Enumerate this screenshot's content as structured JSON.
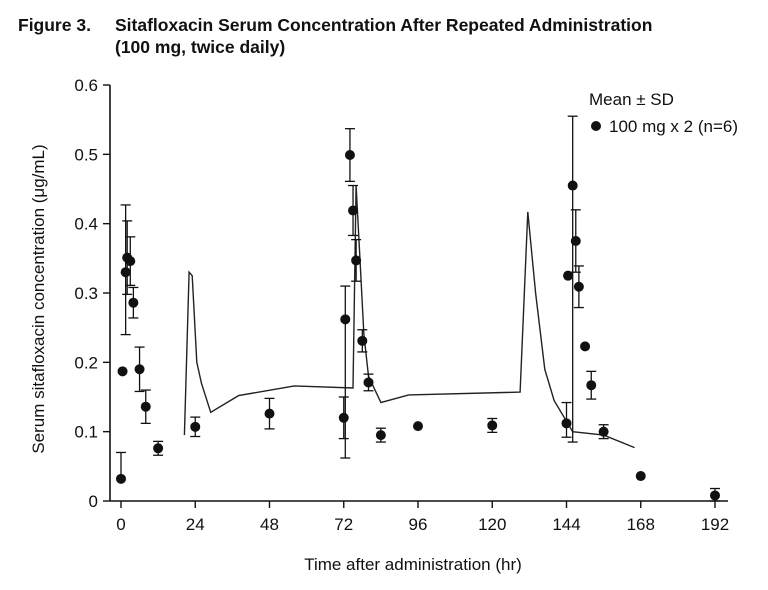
{
  "figure": {
    "label": "Figure 3.",
    "title": "Sitafloxacin Serum Concentration After Repeated  Administration",
    "subtitle": "(100 mg, twice daily)"
  },
  "chart_data": {
    "type": "scatter",
    "xlabel": "Time after administration (hr)",
    "ylabel": "Serum sitafloxacin concentration (μg/mL)",
    "xlim": [
      0,
      192
    ],
    "ylim": [
      0,
      0.6
    ],
    "xticks": [
      0,
      24,
      48,
      72,
      96,
      120,
      144,
      168,
      192
    ],
    "yticks": [
      0,
      0.1,
      0.2,
      0.3,
      0.4,
      0.5,
      0.6
    ],
    "ytick_labels": [
      "0",
      "0.1",
      "0.2",
      "0.3",
      "0.4",
      "0.5",
      "0.6"
    ],
    "legend": {
      "title": "Mean ± SD",
      "entry": "100 mg x 2 (n=6)",
      "position": "top-right"
    },
    "grid": false,
    "series": [
      {
        "name": "100 mg x 2 (n=6)",
        "marker": "filled-circle",
        "points": [
          {
            "x": 0,
            "y": 0.032,
            "sd_up": 0.038,
            "sd_low": 0
          },
          {
            "x": 0.5,
            "y": 0.187,
            "sd_up": 0,
            "sd_low": 0
          },
          {
            "x": 1.5,
            "y": 0.33,
            "sd_up": 0.097,
            "sd_low": 0.09
          },
          {
            "x": 2,
            "y": 0.351,
            "sd_up": 0.053,
            "sd_low": 0.053
          },
          {
            "x": 3,
            "y": 0.346,
            "sd_up": 0.035,
            "sd_low": 0.035
          },
          {
            "x": 4,
            "y": 0.286,
            "sd_up": 0.022,
            "sd_low": 0.022
          },
          {
            "x": 6,
            "y": 0.19,
            "sd_up": 0.032,
            "sd_low": 0.032
          },
          {
            "x": 8,
            "y": 0.136,
            "sd_up": 0.024,
            "sd_low": 0.024
          },
          {
            "x": 12,
            "y": 0.076,
            "sd_up": 0.01,
            "sd_low": 0.01
          },
          {
            "x": 24,
            "y": 0.107,
            "sd_up": 0.014,
            "sd_low": 0.014
          },
          {
            "x": 48,
            "y": 0.126,
            "sd_up": 0.022,
            "sd_low": 0.022
          },
          {
            "x": 72,
            "y": 0.12,
            "sd_up": 0.03,
            "sd_low": 0.03
          },
          {
            "x": 72.5,
            "y": 0.262,
            "sd_up": 0.048,
            "sd_low": 0.2
          },
          {
            "x": 74,
            "y": 0.499,
            "sd_up": 0.038,
            "sd_low": 0.038
          },
          {
            "x": 75,
            "y": 0.419,
            "sd_up": 0.036,
            "sd_low": 0.036
          },
          {
            "x": 76,
            "y": 0.347,
            "sd_up": 0.03,
            "sd_low": 0.03
          },
          {
            "x": 78,
            "y": 0.231,
            "sd_up": 0.016,
            "sd_low": 0.016
          },
          {
            "x": 80,
            "y": 0.171,
            "sd_up": 0.012,
            "sd_low": 0.012
          },
          {
            "x": 84,
            "y": 0.095,
            "sd_up": 0.01,
            "sd_low": 0.01
          },
          {
            "x": 96,
            "y": 0.108,
            "sd_up": 0,
            "sd_low": 0
          },
          {
            "x": 120,
            "y": 0.109,
            "sd_up": 0.01,
            "sd_low": 0.01
          },
          {
            "x": 144,
            "y": 0.112,
            "sd_up": 0.03,
            "sd_low": 0.02
          },
          {
            "x": 144.5,
            "y": 0.325,
            "sd_up": 0,
            "sd_low": 0
          },
          {
            "x": 146,
            "y": 0.455,
            "sd_up": 0.1,
            "sd_low": 0.37
          },
          {
            "x": 147,
            "y": 0.375,
            "sd_up": 0.045,
            "sd_low": 0.045
          },
          {
            "x": 148,
            "y": 0.309,
            "sd_up": 0.03,
            "sd_low": 0.03
          },
          {
            "x": 150,
            "y": 0.223,
            "sd_up": 0,
            "sd_low": 0
          },
          {
            "x": 152,
            "y": 0.167,
            "sd_up": 0.02,
            "sd_low": 0.02
          },
          {
            "x": 156,
            "y": 0.1,
            "sd_up": 0.01,
            "sd_low": 0.01
          },
          {
            "x": 168,
            "y": 0.036,
            "sd_up": 0,
            "sd_low": 0
          },
          {
            "x": 192,
            "y": 0.008,
            "sd_up": 0.01,
            "sd_low": 0.01
          }
        ]
      },
      {
        "type": "line",
        "points": [
          {
            "x": 20.5,
            "y": 0.095
          },
          {
            "x": 22,
            "y": 0.33
          },
          {
            "x": 23,
            "y": 0.325
          },
          {
            "x": 24.5,
            "y": 0.2
          },
          {
            "x": 26,
            "y": 0.17
          },
          {
            "x": 29,
            "y": 0.128
          },
          {
            "x": 38,
            "y": 0.152
          },
          {
            "x": 56,
            "y": 0.166
          },
          {
            "x": 75,
            "y": 0.163
          },
          {
            "x": 76,
            "y": 0.455
          },
          {
            "x": 77,
            "y": 0.37
          },
          {
            "x": 78.5,
            "y": 0.24
          },
          {
            "x": 80,
            "y": 0.18
          },
          {
            "x": 84,
            "y": 0.142
          },
          {
            "x": 93,
            "y": 0.153
          },
          {
            "x": 129,
            "y": 0.157
          },
          {
            "x": 131.5,
            "y": 0.417
          },
          {
            "x": 134,
            "y": 0.3
          },
          {
            "x": 137,
            "y": 0.19
          },
          {
            "x": 140,
            "y": 0.145
          },
          {
            "x": 146,
            "y": 0.1
          },
          {
            "x": 156,
            "y": 0.095
          },
          {
            "x": 166,
            "y": 0.077
          }
        ]
      }
    ]
  }
}
